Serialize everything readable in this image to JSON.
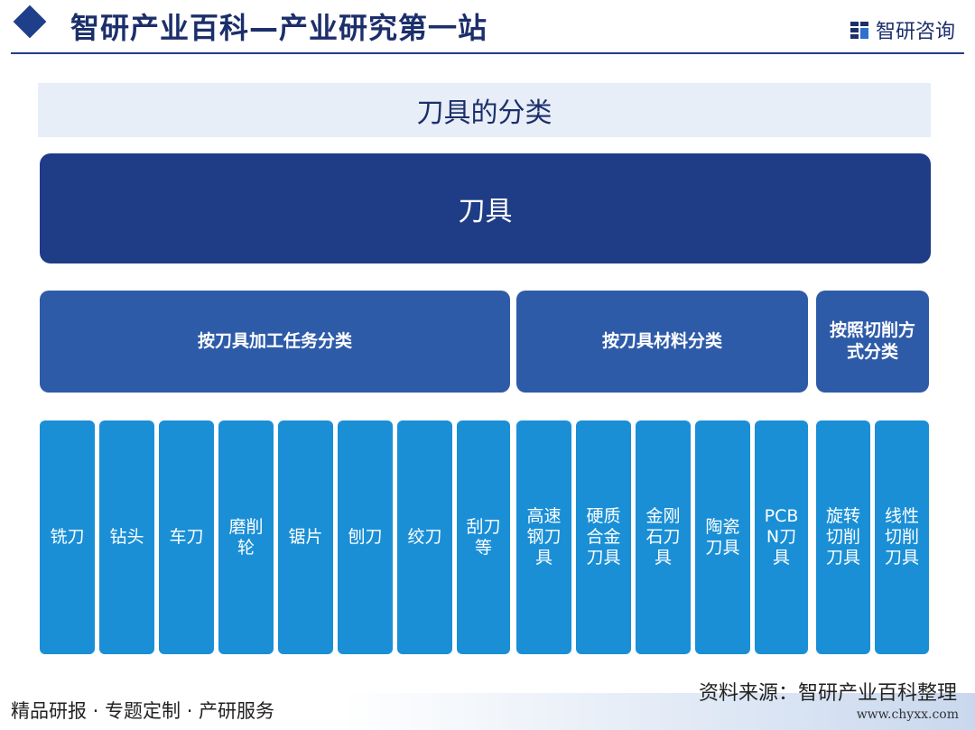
{
  "header": {
    "site_title": "智研产业百科—产业研究第一站",
    "brand_name": "智研咨询"
  },
  "diagram": {
    "title": "刀具的分类",
    "root": "刀具",
    "categories": [
      "按刀具加工任务分类",
      "按刀具材料分类",
      "按照切削方式分类"
    ],
    "leaves": [
      "铣刀",
      "钻头",
      "车刀",
      "磨削轮",
      "锯片",
      "刨刀",
      "绞刀",
      "刮刀等",
      "高速钢刀具",
      "硬质合金刀具",
      "金刚石刀具",
      "陶瓷刀具",
      "PCBN刀具",
      "旋转切削刀具",
      "线性切削刀具"
    ]
  },
  "footer": {
    "source": "资料来源：智研产业百科整理",
    "slogan": "精品研报 · 专题定制 · 产研服务",
    "url": "www.chyxx.com"
  },
  "colors": {
    "root": "#1f3d86",
    "category": "#2e5ba8",
    "leaf": "#1a8fd6",
    "title_bar": "#e7eef8",
    "brand": "#1c2f6b"
  }
}
